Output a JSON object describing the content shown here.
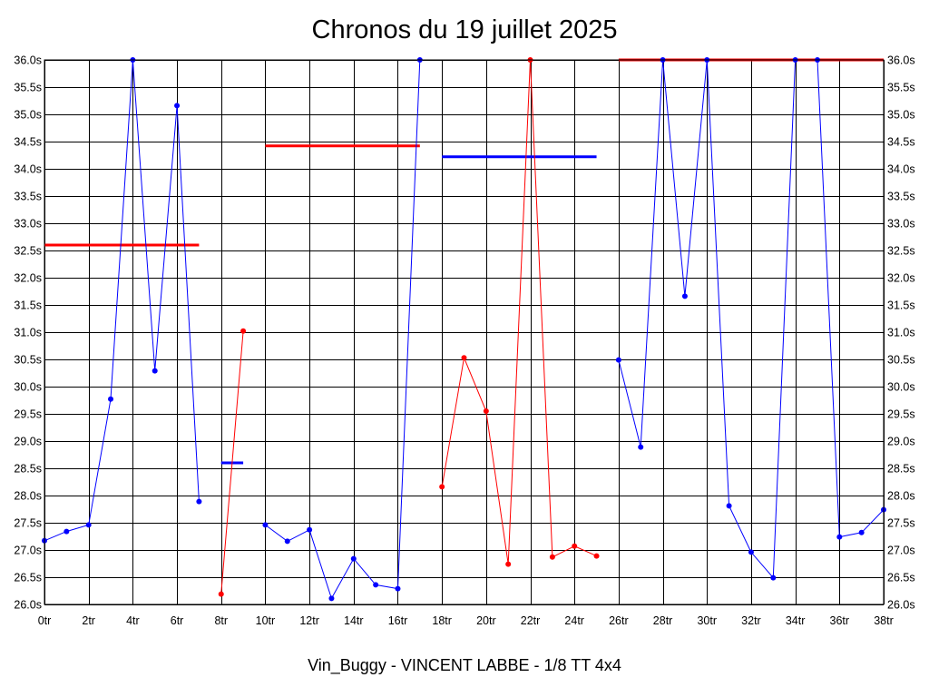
{
  "chart_data": {
    "type": "line",
    "title": "Chronos du 19 juillet 2025",
    "subtitle": "Vin_Buggy - VINCENT LABBE - 1/8 TT 4x4",
    "xlabel": "",
    "ylabel": "",
    "xlim": [
      0,
      38
    ],
    "ylim": [
      26.0,
      36.0
    ],
    "x_tick_values": [
      0,
      2,
      4,
      6,
      8,
      10,
      12,
      14,
      16,
      18,
      20,
      22,
      24,
      26,
      28,
      30,
      32,
      34,
      36,
      38
    ],
    "x_tick_labels": [
      "0tr",
      "2tr",
      "4tr",
      "6tr",
      "8tr",
      "10tr",
      "12tr",
      "14tr",
      "16tr",
      "18tr",
      "20tr",
      "22tr",
      "24tr",
      "26tr",
      "28tr",
      "30tr",
      "32tr",
      "34tr",
      "36tr",
      "38tr"
    ],
    "y_tick_values": [
      26.0,
      26.5,
      27.0,
      27.5,
      28.0,
      28.5,
      29.0,
      29.5,
      30.0,
      30.5,
      31.0,
      31.5,
      32.0,
      32.5,
      33.0,
      33.5,
      34.0,
      34.5,
      35.0,
      35.5,
      36.0
    ],
    "y_tick_labels": [
      "26.0s",
      "26.5s",
      "27.0s",
      "27.5s",
      "28.0s",
      "28.5s",
      "29.0s",
      "29.5s",
      "30.0s",
      "30.5s",
      "31.0s",
      "31.5s",
      "32.0s",
      "32.5s",
      "33.0s",
      "33.5s",
      "34.0s",
      "34.5s",
      "35.0s",
      "35.5s",
      "36.0s"
    ],
    "grid": true,
    "y_axis_labels_both_sides": true,
    "series": [
      {
        "color": "#0000ff",
        "x": [
          0,
          1,
          2,
          3,
          4,
          5,
          6,
          7
        ],
        "y": [
          27.17,
          27.34,
          27.46,
          29.77,
          36.0,
          30.29,
          35.16,
          27.89
        ]
      },
      {
        "color": "#ff0000",
        "x": [
          8,
          9
        ],
        "y": [
          26.19,
          31.02
        ]
      },
      {
        "color": "#0000ff",
        "x": [
          10,
          11,
          12,
          13,
          14,
          15,
          16,
          17
        ],
        "y": [
          27.46,
          27.16,
          27.37,
          26.11,
          26.84,
          26.36,
          26.29,
          36.0
        ]
      },
      {
        "color": "#ff0000",
        "x": [
          18,
          19,
          20,
          21,
          22,
          23,
          24,
          25
        ],
        "y": [
          28.16,
          30.53,
          29.55,
          26.74,
          36.0,
          26.87,
          27.07,
          26.89
        ]
      },
      {
        "color": "#0000ff",
        "x": [
          26,
          27,
          28,
          29,
          30,
          31,
          32,
          33,
          34,
          35,
          36,
          37,
          38
        ],
        "y": [
          30.49,
          28.89,
          36.0,
          31.66,
          36.0,
          27.81,
          26.96,
          26.49,
          36.0,
          36.0,
          27.24,
          27.32,
          27.74
        ]
      }
    ],
    "average_lines": [
      {
        "color": "#ff0000",
        "x_start": 0,
        "x_end": 7,
        "y": 32.6
      },
      {
        "color": "#0000ff",
        "x_start": 8,
        "x_end": 9,
        "y": 28.6
      },
      {
        "color": "#ff0000",
        "x_start": 10,
        "x_end": 17,
        "y": 34.42
      },
      {
        "color": "#0000ff",
        "x_start": 18,
        "x_end": 25,
        "y": 34.22
      },
      {
        "color": "#ff0000",
        "x_start": 26,
        "x_end": 38,
        "y": 36.0
      }
    ]
  }
}
